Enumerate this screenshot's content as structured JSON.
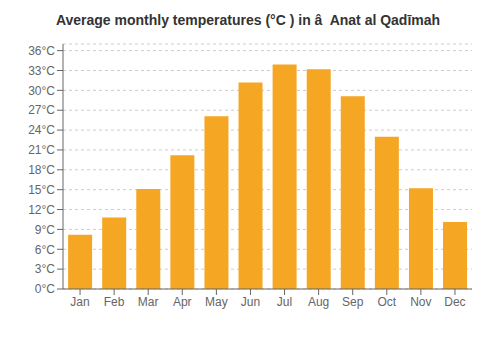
{
  "chart_data": {
    "type": "bar",
    "title": "Average monthly temperatures (°C ) in â  Anat al Qadīmah",
    "categories": [
      "Jan",
      "Feb",
      "Mar",
      "Apr",
      "May",
      "Jun",
      "Jul",
      "Aug",
      "Sep",
      "Oct",
      "Nov",
      "Dec"
    ],
    "values": [
      8.2,
      10.8,
      15.1,
      20.2,
      26.1,
      31.2,
      33.9,
      33.2,
      29.1,
      23.0,
      15.2,
      10.1
    ],
    "color": "#F5A623",
    "ylim": [
      0,
      37
    ],
    "yticks": [
      {
        "value": 0,
        "label": "0°C"
      },
      {
        "value": 3,
        "label": "3°C"
      },
      {
        "value": 6,
        "label": "6°C"
      },
      {
        "value": 9,
        "label": "9°C"
      },
      {
        "value": 12,
        "label": "12°C"
      },
      {
        "value": 15,
        "label": "15°C"
      },
      {
        "value": 18,
        "label": "18°C"
      },
      {
        "value": 21,
        "label": "21°C"
      },
      {
        "value": 24,
        "label": "24°C"
      },
      {
        "value": 27,
        "label": "27°C"
      },
      {
        "value": 30,
        "label": "30°C"
      },
      {
        "value": 33,
        "label": "33°C"
      },
      {
        "value": 36,
        "label": "36°C"
      }
    ],
    "grid": true
  }
}
